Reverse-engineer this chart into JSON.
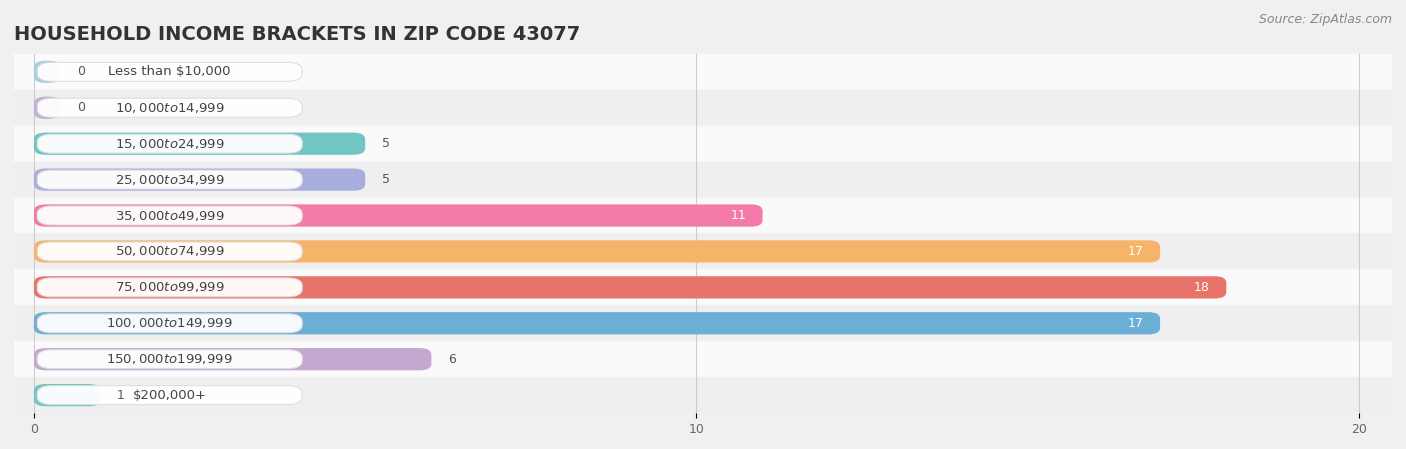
{
  "title": "HOUSEHOLD INCOME BRACKETS IN ZIP CODE 43077",
  "source": "Source: ZipAtlas.com",
  "categories": [
    "Less than $10,000",
    "$10,000 to $14,999",
    "$15,000 to $24,999",
    "$25,000 to $34,999",
    "$35,000 to $49,999",
    "$50,000 to $74,999",
    "$75,000 to $99,999",
    "$100,000 to $149,999",
    "$150,000 to $199,999",
    "$200,000+"
  ],
  "values": [
    0,
    0,
    5,
    5,
    11,
    17,
    18,
    17,
    6,
    1
  ],
  "bar_colors": [
    "#a8cfe0",
    "#c4afd8",
    "#72c5c5",
    "#a8aedc",
    "#f47aaa",
    "#f5b469",
    "#e8736a",
    "#6baed6",
    "#c4a8d0",
    "#72c5c5"
  ],
  "xlim": [
    -0.3,
    20.5
  ],
  "xticks": [
    0,
    10,
    20
  ],
  "background_color": "#f0f0f0",
  "row_colors": [
    "#fafafa",
    "#efefef"
  ],
  "title_fontsize": 14,
  "source_fontsize": 9,
  "label_fontsize": 9.5,
  "value_fontsize": 9,
  "bar_height": 0.62,
  "min_bar_for_label": 0.4
}
